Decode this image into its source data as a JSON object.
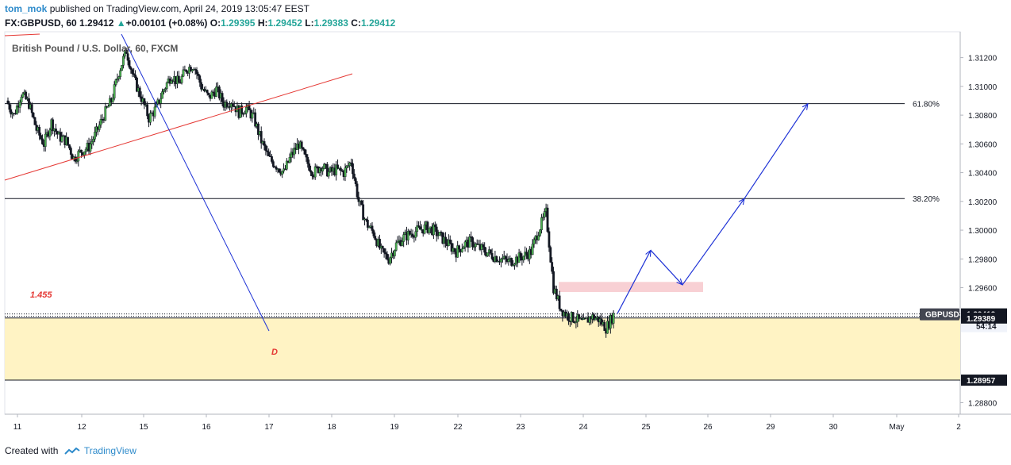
{
  "header": {
    "author": "tom_mok",
    "published_text": "published on TradingView.com, April 24, 2019 13:05:47 EEST"
  },
  "ohlc": {
    "symbol": "FX:GBPUSD, 60",
    "last": "1.29412",
    "change": "+0.00101 (+0.08%)",
    "o_label": "O:",
    "o": "1.29395",
    "h_label": "H:",
    "h": "1.29452",
    "l_label": "L:",
    "l": "1.29383",
    "c_label": "C:",
    "c": "1.29412"
  },
  "footer": {
    "created_with": "Created with",
    "brand": "TradingView"
  },
  "colors": {
    "up": "#26a69a",
    "down": "#131722",
    "candle_up": "#4caf50",
    "zone_fill": "#fff3c4",
    "pink_zone": "#f8d0d4",
    "trend_red": "#e53935",
    "projection_blue": "#1e32d6",
    "label_red": "#e53935"
  },
  "chart_data": {
    "type": "candlestick",
    "title": "British Pound / U.S. Dollar, 60, FXCM",
    "ylim": [
      1.2872,
      1.3138
    ],
    "y_ticks": [
      1.312,
      1.31,
      1.308,
      1.306,
      1.304,
      1.302,
      1.3,
      1.298,
      1.296,
      1.288
    ],
    "y_tick_labels": [
      "1.31200",
      "1.31000",
      "1.30800",
      "1.30600",
      "1.30400",
      "1.30200",
      "1.30000",
      "1.29800",
      "1.29600",
      "1.28800"
    ],
    "x_labels": [
      "11",
      "12",
      "15",
      "16",
      "17",
      "18",
      "19",
      "22",
      "23",
      "24",
      "25",
      "26",
      "29",
      "30",
      "May",
      "2"
    ],
    "close_path": [
      1.309,
      1.308,
      1.3095,
      1.3088,
      1.307,
      1.306,
      1.3075,
      1.3065,
      1.3062,
      1.305,
      1.3055,
      1.3058,
      1.3068,
      1.308,
      1.309,
      1.311,
      1.3125,
      1.3105,
      1.3092,
      1.3078,
      1.3085,
      1.3098,
      1.3108,
      1.3102,
      1.3112,
      1.3115,
      1.31,
      1.3092,
      1.3098,
      1.3088,
      1.309,
      1.3082,
      1.3085,
      1.3078,
      1.3062,
      1.305,
      1.3045,
      1.304,
      1.3052,
      1.306,
      1.3048,
      1.304,
      1.3045,
      1.304,
      1.3042,
      1.304,
      1.3048,
      1.302,
      1.3005,
      1.2998,
      1.2985,
      1.298,
      1.299,
      1.2995,
      1.2998,
      1.3,
      1.3002,
      1.3,
      1.2995,
      1.299,
      1.2985,
      1.299,
      1.2992,
      1.2988,
      1.2985,
      1.2982,
      1.298,
      1.2978,
      1.298,
      1.2982,
      1.2985,
      1.3,
      1.3012,
      1.296,
      1.2945,
      1.294,
      1.2938,
      1.2935,
      1.294,
      1.2938,
      1.2932,
      1.2941
    ],
    "horizontal_levels": [
      {
        "label": "61.80%",
        "value": 1.3088
      },
      {
        "label": "38.20%",
        "value": 1.3022
      },
      {
        "label": "1.29389",
        "value": 1.29389
      },
      {
        "label": "1.28957",
        "value": 1.28957
      }
    ],
    "current_price": {
      "symbol": "GBPUSD",
      "value": 1.29412,
      "countdown": "54:14"
    },
    "demand_zone": {
      "top": 1.29389,
      "bottom": 1.28957
    },
    "supply_zone": {
      "top": 1.2964,
      "bottom": 1.2957
    },
    "annotations": [
      {
        "text": "1.455"
      },
      {
        "text": "D"
      }
    ],
    "projection_path": [
      1.2942,
      1.2986,
      1.2962,
      1.3022,
      1.3088
    ]
  }
}
